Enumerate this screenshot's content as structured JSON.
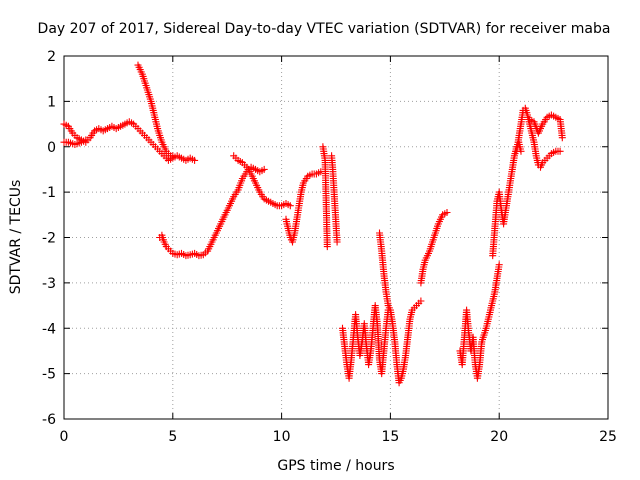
{
  "chart_data": {
    "type": "scatter",
    "title": "Day 207 of 2017, Sidereal Day-to-day VTEC variation (SDTVAR) for receiver maba",
    "xlabel": "GPS time / hours",
    "ylabel": "SDTVAR / TECUs",
    "xlim": [
      0,
      25
    ],
    "ylim": [
      -6,
      2
    ],
    "x_ticks": [
      0,
      5,
      10,
      15,
      20,
      25
    ],
    "y_ticks": [
      -6,
      -5,
      -4,
      -3,
      -2,
      -1,
      0,
      1,
      2
    ],
    "grid": true,
    "marker": "+",
    "color": "#ff0000",
    "series": [
      {
        "name": "SDTVAR",
        "segments": [
          [
            [
              0.0,
              0.5
            ],
            [
              0.2,
              0.45
            ],
            [
              0.4,
              0.3
            ],
            [
              0.6,
              0.2
            ],
            [
              0.8,
              0.15
            ],
            [
              1.0,
              0.1
            ],
            [
              1.2,
              0.2
            ],
            [
              1.4,
              0.35
            ],
            [
              1.6,
              0.4
            ],
            [
              1.8,
              0.35
            ],
            [
              2.0,
              0.4
            ],
            [
              2.2,
              0.45
            ],
            [
              2.4,
              0.4
            ],
            [
              2.6,
              0.45
            ],
            [
              2.8,
              0.5
            ],
            [
              3.0,
              0.55
            ],
            [
              3.2,
              0.5
            ],
            [
              3.4,
              0.4
            ],
            [
              3.6,
              0.3
            ],
            [
              3.8,
              0.2
            ],
            [
              4.0,
              0.1
            ],
            [
              4.2,
              0.0
            ],
            [
              4.4,
              -0.1
            ],
            [
              4.6,
              -0.2
            ],
            [
              4.8,
              -0.3
            ],
            [
              5.0,
              -0.25
            ],
            [
              5.2,
              -0.2
            ],
            [
              5.4,
              -0.25
            ],
            [
              5.6,
              -0.3
            ],
            [
              5.8,
              -0.25
            ],
            [
              6.0,
              -0.3
            ]
          ],
          [
            [
              0.0,
              0.1
            ],
            [
              0.2,
              0.1
            ],
            [
              0.5,
              0.05
            ],
            [
              0.8,
              0.1
            ],
            [
              1.0,
              0.15
            ]
          ],
          [
            [
              3.4,
              1.8
            ],
            [
              3.5,
              1.7
            ],
            [
              3.6,
              1.6
            ],
            [
              3.7,
              1.45
            ],
            [
              3.8,
              1.3
            ],
            [
              3.9,
              1.15
            ],
            [
              4.0,
              1.0
            ],
            [
              4.1,
              0.8
            ],
            [
              4.2,
              0.6
            ],
            [
              4.3,
              0.4
            ],
            [
              4.4,
              0.25
            ],
            [
              4.5,
              0.1
            ],
            [
              4.6,
              0.0
            ],
            [
              4.7,
              -0.1
            ],
            [
              4.8,
              -0.15
            ],
            [
              4.9,
              -0.2
            ],
            [
              5.0,
              -0.2
            ]
          ],
          [
            [
              4.4,
              -2.0
            ],
            [
              4.5,
              -1.95
            ],
            [
              4.6,
              -2.1
            ],
            [
              4.7,
              -2.2
            ],
            [
              4.8,
              -2.25
            ],
            [
              4.9,
              -2.3
            ],
            [
              5.0,
              -2.35
            ],
            [
              5.2,
              -2.38
            ],
            [
              5.4,
              -2.35
            ],
            [
              5.6,
              -2.4
            ],
            [
              5.8,
              -2.38
            ],
            [
              6.0,
              -2.35
            ],
            [
              6.2,
              -2.4
            ],
            [
              6.4,
              -2.38
            ],
            [
              6.6,
              -2.3
            ],
            [
              6.8,
              -2.1
            ],
            [
              7.0,
              -1.9
            ],
            [
              7.2,
              -1.7
            ],
            [
              7.4,
              -1.5
            ],
            [
              7.6,
              -1.3
            ],
            [
              7.8,
              -1.1
            ],
            [
              8.0,
              -0.95
            ],
            [
              8.2,
              -0.7
            ],
            [
              8.4,
              -0.55
            ],
            [
              8.6,
              -0.45
            ],
            [
              8.8,
              -0.5
            ],
            [
              9.0,
              -0.55
            ],
            [
              9.2,
              -0.5
            ]
          ],
          [
            [
              7.8,
              -0.2
            ],
            [
              8.0,
              -0.3
            ],
            [
              8.2,
              -0.35
            ],
            [
              8.4,
              -0.45
            ],
            [
              8.6,
              -0.6
            ],
            [
              8.8,
              -0.8
            ],
            [
              9.0,
              -1.0
            ],
            [
              9.2,
              -1.15
            ],
            [
              9.4,
              -1.2
            ],
            [
              9.6,
              -1.25
            ],
            [
              9.8,
              -1.3
            ],
            [
              10.0,
              -1.3
            ],
            [
              10.2,
              -1.25
            ],
            [
              10.4,
              -1.3
            ]
          ],
          [
            [
              10.2,
              -1.6
            ],
            [
              10.3,
              -1.8
            ],
            [
              10.4,
              -2.0
            ],
            [
              10.5,
              -2.1
            ],
            [
              10.6,
              -1.9
            ],
            [
              10.7,
              -1.6
            ],
            [
              10.8,
              -1.3
            ],
            [
              10.9,
              -1.0
            ],
            [
              11.0,
              -0.8
            ],
            [
              11.2,
              -0.65
            ],
            [
              11.4,
              -0.6
            ],
            [
              11.6,
              -0.6
            ],
            [
              11.8,
              -0.55
            ]
          ],
          [
            [
              11.9,
              0.0
            ],
            [
              12.0,
              -0.3
            ],
            [
              12.1,
              -2.2
            ]
          ],
          [
            [
              12.3,
              -0.2
            ],
            [
              12.35,
              -0.5
            ],
            [
              12.4,
              -0.9
            ],
            [
              12.45,
              -1.3
            ],
            [
              12.5,
              -1.7
            ],
            [
              12.55,
              -2.1
            ]
          ],
          [
            [
              12.8,
              -4.0
            ],
            [
              12.9,
              -4.4
            ],
            [
              13.0,
              -4.8
            ],
            [
              13.1,
              -5.1
            ],
            [
              13.2,
              -4.7
            ],
            [
              13.3,
              -4.2
            ],
            [
              13.4,
              -3.7
            ],
            [
              13.5,
              -4.2
            ],
            [
              13.6,
              -4.6
            ],
            [
              13.7,
              -4.3
            ],
            [
              13.8,
              -3.9
            ],
            [
              13.9,
              -4.4
            ],
            [
              14.0,
              -4.8
            ],
            [
              14.1,
              -4.5
            ],
            [
              14.2,
              -4.0
            ],
            [
              14.3,
              -3.5
            ],
            [
              14.4,
              -3.9
            ],
            [
              14.5,
              -4.7
            ],
            [
              14.6,
              -5.0
            ],
            [
              14.7,
              -4.5
            ],
            [
              14.8,
              -4.0
            ],
            [
              14.9,
              -3.6
            ]
          ],
          [
            [
              14.5,
              -1.9
            ],
            [
              14.6,
              -2.3
            ],
            [
              14.7,
              -2.8
            ],
            [
              14.8,
              -3.2
            ],
            [
              14.9,
              -3.5
            ],
            [
              15.0,
              -3.6
            ],
            [
              15.1,
              -3.9
            ],
            [
              15.2,
              -4.3
            ],
            [
              15.3,
              -4.8
            ],
            [
              15.4,
              -5.2
            ],
            [
              15.5,
              -5.1
            ],
            [
              15.6,
              -4.9
            ],
            [
              15.7,
              -4.6
            ],
            [
              15.8,
              -4.2
            ],
            [
              15.9,
              -3.8
            ],
            [
              16.0,
              -3.6
            ],
            [
              16.2,
              -3.5
            ],
            [
              16.4,
              -3.4
            ]
          ],
          [
            [
              16.4,
              -3.0
            ],
            [
              16.5,
              -2.7
            ],
            [
              16.6,
              -2.5
            ],
            [
              16.8,
              -2.3
            ],
            [
              17.0,
              -2.0
            ],
            [
              17.2,
              -1.7
            ],
            [
              17.4,
              -1.5
            ],
            [
              17.6,
              -1.45
            ]
          ],
          [
            [
              18.2,
              -4.5
            ],
            [
              18.3,
              -4.8
            ],
            [
              18.4,
              -4.2
            ],
            [
              18.5,
              -3.6
            ],
            [
              18.6,
              -4.1
            ],
            [
              18.7,
              -4.5
            ],
            [
              18.8,
              -4.2
            ],
            [
              18.9,
              -4.8
            ],
            [
              19.0,
              -5.1
            ],
            [
              19.1,
              -4.8
            ],
            [
              19.2,
              -4.3
            ],
            [
              19.4,
              -4.0
            ],
            [
              19.6,
              -3.6
            ],
            [
              19.8,
              -3.2
            ],
            [
              20.0,
              -2.6
            ]
          ],
          [
            [
              19.7,
              -2.4
            ],
            [
              19.8,
              -1.8
            ],
            [
              19.9,
              -1.2
            ],
            [
              20.0,
              -1.0
            ],
            [
              20.1,
              -1.4
            ],
            [
              20.2,
              -1.7
            ],
            [
              20.3,
              -1.4
            ],
            [
              20.4,
              -1.1
            ],
            [
              20.5,
              -0.8
            ],
            [
              20.6,
              -0.5
            ],
            [
              20.7,
              -0.2
            ],
            [
              20.8,
              0.0
            ],
            [
              20.9,
              0.1
            ],
            [
              21.0,
              -0.1
            ]
          ],
          [
            [
              20.8,
              -0.1
            ],
            [
              20.9,
              0.2
            ],
            [
              21.0,
              0.5
            ],
            [
              21.1,
              0.8
            ],
            [
              21.2,
              0.85
            ],
            [
              21.3,
              0.7
            ],
            [
              21.4,
              0.5
            ],
            [
              21.5,
              0.3
            ],
            [
              21.6,
              0.1
            ],
            [
              21.7,
              -0.2
            ],
            [
              21.8,
              -0.4
            ],
            [
              21.9,
              -0.45
            ],
            [
              22.0,
              -0.35
            ],
            [
              22.2,
              -0.25
            ],
            [
              22.4,
              -0.15
            ],
            [
              22.6,
              -0.1
            ],
            [
              22.8,
              -0.1
            ]
          ],
          [
            [
              21.4,
              0.6
            ],
            [
              21.6,
              0.55
            ],
            [
              21.8,
              0.3
            ],
            [
              22.0,
              0.5
            ],
            [
              22.2,
              0.65
            ],
            [
              22.4,
              0.7
            ],
            [
              22.6,
              0.65
            ],
            [
              22.8,
              0.6
            ],
            [
              22.9,
              0.2
            ]
          ]
        ]
      }
    ]
  }
}
